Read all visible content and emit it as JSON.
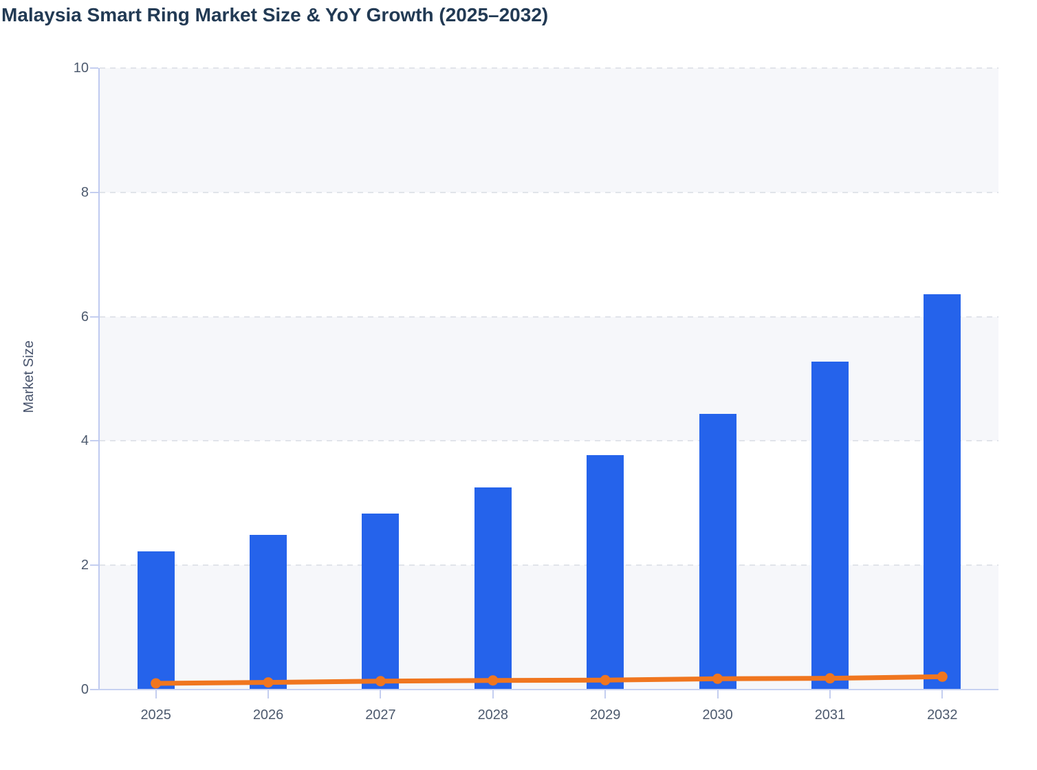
{
  "header": {
    "title": "Malaysia Smart Ring Market Size & YoY Growth (2025–2032)"
  },
  "y_axis": {
    "title": "Market Size"
  },
  "colors": {
    "bar": "#2563eb",
    "line": "#f0761f",
    "title_text": "#223a54",
    "axis_line": "#c4cef0",
    "gridline": "#e1e4ea",
    "plot_band": "#f6f7fa",
    "tick_label": "#4d5a6e"
  },
  "chart_data": {
    "type": "bar",
    "subtype": "combo-bar-line",
    "title": "Malaysia Smart Ring Market Size & YoY Growth (2025–2032)",
    "categories": [
      "2025",
      "2026",
      "2027",
      "2028",
      "2029",
      "2030",
      "2031",
      "2032"
    ],
    "series": [
      {
        "name": "Market Size",
        "type": "bar",
        "color": "#2563eb",
        "values": [
          2.22,
          2.49,
          2.83,
          3.25,
          3.77,
          4.44,
          5.28,
          6.36
        ]
      },
      {
        "name": "YoY Growth",
        "type": "line",
        "color": "#f0761f",
        "values": [
          0.1,
          0.115,
          0.135,
          0.147,
          0.152,
          0.174,
          0.181,
          0.207
        ]
      }
    ],
    "xlabel": "",
    "ylabel": "Market Size",
    "ylim": [
      0,
      10
    ],
    "yticks": [
      0,
      2,
      4,
      6,
      8,
      10
    ],
    "grid": "horizontal-dashed",
    "plot_bands": "alternating horizontal fill between tick pairs 0-2, 4-6, 8-10",
    "legend": "none"
  }
}
